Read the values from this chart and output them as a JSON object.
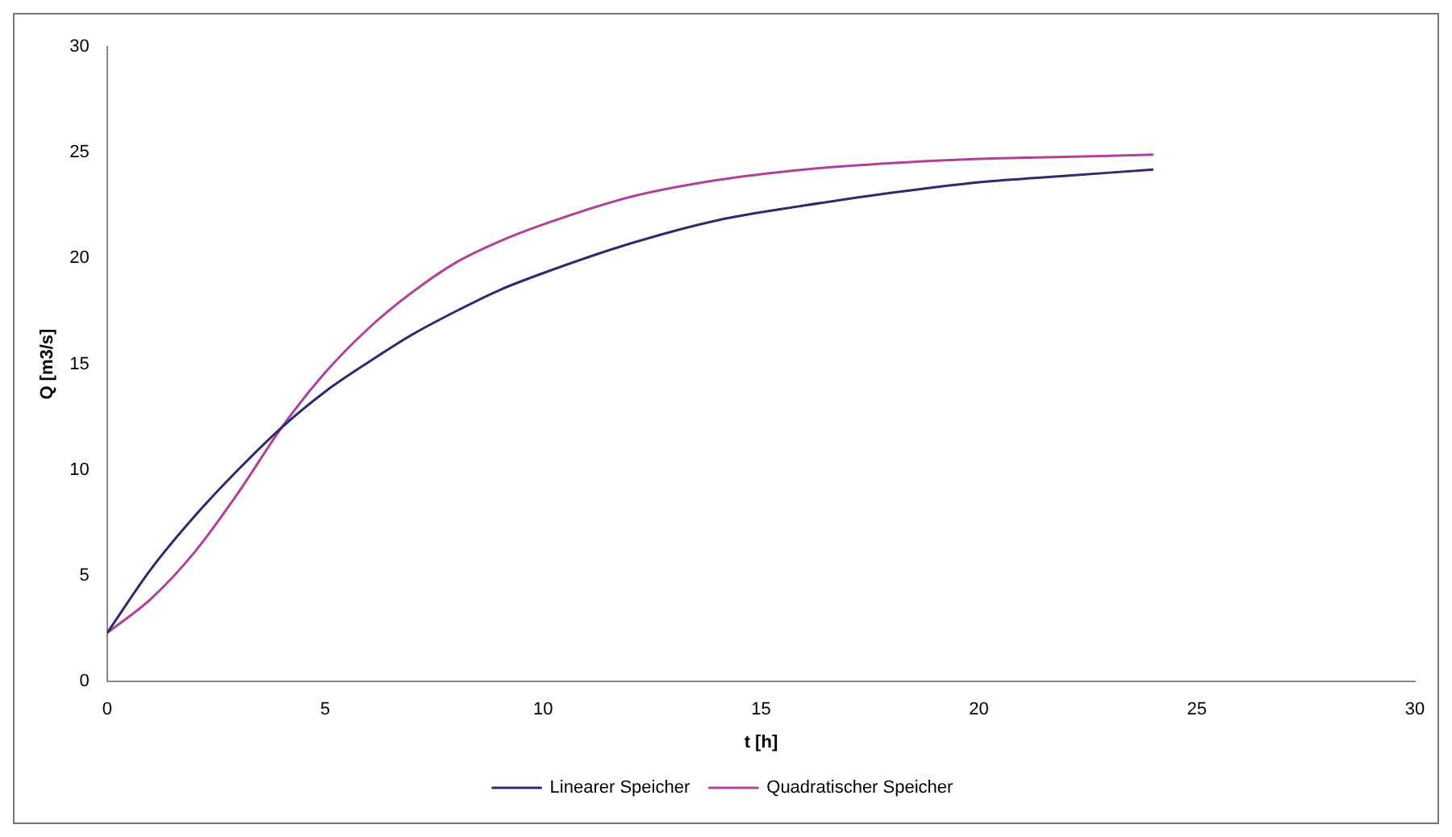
{
  "chart_data": {
    "type": "line",
    "xlabel": "t [h]",
    "ylabel": "Q [m3/s]",
    "xlim": [
      0,
      30
    ],
    "xticks": [
      0,
      5,
      10,
      15,
      20,
      25,
      30
    ],
    "ylim": [
      0,
      30
    ],
    "yticks": [
      0,
      5,
      10,
      15,
      20,
      25,
      30
    ],
    "grid": false,
    "legend": "bottom",
    "marker": "none",
    "line_style": "solid",
    "series": [
      {
        "name": "Linearer Speicher",
        "color": "#2e2a6e",
        "x": [
          0,
          1,
          2,
          3,
          4,
          5,
          6,
          7,
          8,
          9,
          10,
          12,
          14,
          16,
          18,
          20,
          22,
          24
        ],
        "values": [
          2.3,
          5.3,
          7.8,
          10.0,
          12.0,
          13.7,
          15.1,
          16.4,
          17.5,
          18.5,
          19.3,
          20.7,
          21.8,
          22.5,
          23.1,
          23.6,
          23.9,
          24.2
        ]
      },
      {
        "name": "Quadratischer Speicher",
        "color": "#b0409a",
        "x": [
          0,
          1,
          2,
          3,
          4,
          5,
          6,
          7,
          8,
          9,
          10,
          12,
          14,
          16,
          18,
          20,
          22,
          24
        ],
        "values": [
          2.3,
          3.9,
          6.1,
          8.9,
          12.0,
          14.6,
          16.7,
          18.4,
          19.8,
          20.8,
          21.6,
          22.9,
          23.7,
          24.2,
          24.5,
          24.7,
          24.8,
          24.9
        ]
      }
    ]
  }
}
